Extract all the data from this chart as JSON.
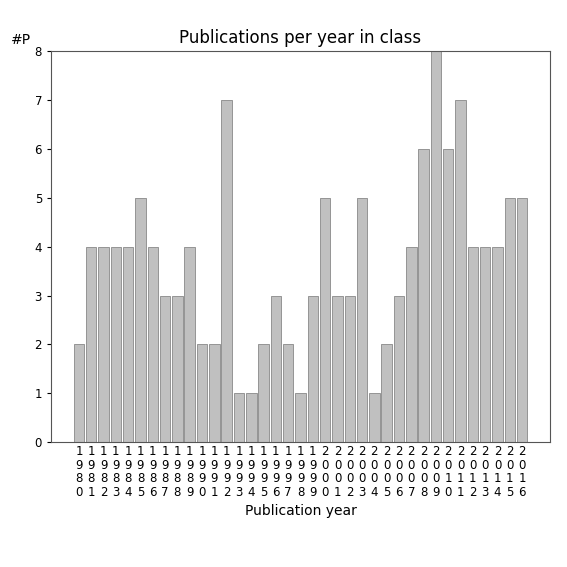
{
  "years": [
    1980,
    1981,
    1982,
    1983,
    1984,
    1985,
    1986,
    1987,
    1988,
    1989,
    1990,
    1991,
    1992,
    1993,
    1994,
    1995,
    1996,
    1997,
    1998,
    1999,
    2000,
    2001,
    2002,
    2003,
    2004,
    2005,
    2006,
    2007,
    2008,
    2009,
    2010,
    2011,
    2012,
    2013,
    2014,
    2015,
    2016
  ],
  "values": [
    2,
    4,
    4,
    4,
    4,
    5,
    4,
    3,
    3,
    4,
    2,
    2,
    7,
    1,
    1,
    2,
    3,
    2,
    1,
    3,
    5,
    3,
    3,
    5,
    1,
    2,
    3,
    4,
    6,
    8,
    6,
    7,
    4,
    4,
    4,
    5,
    5
  ],
  "bar_color": "#c0c0c0",
  "bar_edge_color": "#888888",
  "title": "Publications per year in class",
  "xlabel": "Publication year",
  "ylabel": "#P",
  "ylim": [
    0,
    8
  ],
  "yticks": [
    0,
    1,
    2,
    3,
    4,
    5,
    6,
    7,
    8
  ],
  "background_color": "#ffffff",
  "title_fontsize": 12,
  "axis_label_fontsize": 10,
  "tick_fontsize": 8.5
}
